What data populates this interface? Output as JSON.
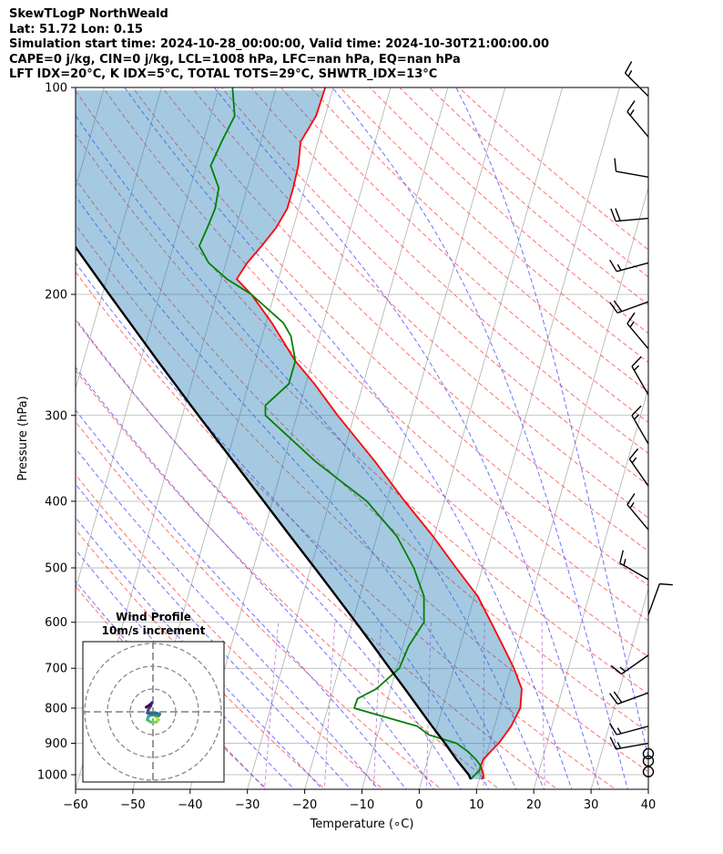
{
  "header": {
    "title": "SkewTLogP NorthWeald",
    "location": "Lat: 51.72   Lon: 0.15",
    "times": "Simulation start time: 2024-10-28_00:00:00, Valid time: 2024-10-30T21:00:00.00",
    "indices1": "CAPE=0 j/kg, CIN=0 j/kg, LCL=1008 hPa, LFC=nan hPa, EQ=nan hPa",
    "indices2": "LFT IDX=20°C, K IDX=5°C, TOTAL TOTS=29°C, SHWTR_IDX=13°C"
  },
  "chart_data": {
    "type": "skewt",
    "xlabel": "Temperature (∘C)",
    "ylabel": "Pressure (hPa)",
    "xlim": [
      -60,
      40
    ],
    "ylim": [
      1050,
      100
    ],
    "x_ticks": [
      -60,
      -50,
      -40,
      -30,
      -20,
      -10,
      0,
      10,
      20,
      30,
      40
    ],
    "x_tick_labels": [
      "−60",
      "−50",
      "−40",
      "−30",
      "−20",
      "−10",
      "0",
      "10",
      "20",
      "30",
      "40"
    ],
    "y_ticks": [
      100,
      200,
      300,
      400,
      500,
      600,
      700,
      800,
      900,
      1000
    ],
    "y_tick_labels": [
      "100",
      "200",
      "300",
      "400",
      "500",
      "600",
      "700",
      "800",
      "900",
      "1000"
    ],
    "skew": 35,
    "grid": true,
    "series": [
      {
        "role": "temperature",
        "color": "#ff0000",
        "points": [
          [
            1015,
            10.3
          ],
          [
            1010,
            10.6
          ],
          [
            1000,
            10.5
          ],
          [
            985,
            10
          ],
          [
            970,
            9.6
          ],
          [
            950,
            9.7
          ],
          [
            925,
            10.6
          ],
          [
            900,
            11.6
          ],
          [
            850,
            12.9
          ],
          [
            800,
            13.6
          ],
          [
            750,
            12.9
          ],
          [
            700,
            10.5
          ],
          [
            650,
            7.5
          ],
          [
            600,
            4.2
          ],
          [
            550,
            0.6
          ],
          [
            500,
            -4.6
          ],
          [
            450,
            -10.2
          ],
          [
            400,
            -16.9
          ],
          [
            350,
            -24.1
          ],
          [
            300,
            -32.9
          ],
          [
            270,
            -38.5
          ],
          [
            250,
            -43
          ],
          [
            220,
            -49
          ],
          [
            200,
            -54
          ],
          [
            190,
            -57.3
          ],
          [
            180,
            -56.3
          ],
          [
            170,
            -54.6
          ],
          [
            160,
            -53
          ],
          [
            150,
            -52
          ],
          [
            140,
            -52
          ],
          [
            130,
            -52.2
          ],
          [
            120,
            -53
          ],
          [
            110,
            -51.6
          ],
          [
            100,
            -51.4
          ]
        ]
      },
      {
        "role": "dewpoint",
        "color": "#008000",
        "points": [
          [
            1015,
            8.5
          ],
          [
            1000,
            9.0
          ],
          [
            985,
            9.6
          ],
          [
            970,
            9.5
          ],
          [
            950,
            8.4
          ],
          [
            925,
            6.6
          ],
          [
            900,
            4.2
          ],
          [
            875,
            -1
          ],
          [
            850,
            -3.5
          ],
          [
            800,
            -15.4
          ],
          [
            775,
            -15.3
          ],
          [
            750,
            -12.5
          ],
          [
            700,
            -9.5
          ],
          [
            650,
            -9
          ],
          [
            600,
            -7.5
          ],
          [
            550,
            -8.8
          ],
          [
            500,
            -12
          ],
          [
            450,
            -16.5
          ],
          [
            400,
            -23.5
          ],
          [
            350,
            -34.5
          ],
          [
            300,
            -45.5
          ],
          [
            290,
            -46
          ],
          [
            270,
            -43
          ],
          [
            250,
            -43
          ],
          [
            230,
            -45
          ],
          [
            220,
            -47
          ],
          [
            200,
            -54
          ],
          [
            190,
            -59
          ],
          [
            180,
            -63
          ],
          [
            170,
            -65.5
          ],
          [
            160,
            -65
          ],
          [
            150,
            -64.6
          ],
          [
            140,
            -65
          ],
          [
            130,
            -67.5
          ],
          [
            120,
            -66.8
          ],
          [
            110,
            -65.8
          ],
          [
            100,
            -67.6
          ]
        ]
      },
      {
        "role": "parcel",
        "color": "#000000",
        "points": [
          [
            1015,
            8.5
          ],
          [
            1000,
            7.9
          ],
          [
            950,
            5.0
          ],
          [
            900,
            2.2
          ],
          [
            850,
            -0.9
          ],
          [
            800,
            -4.1
          ],
          [
            750,
            -7.5
          ],
          [
            700,
            -11.2
          ],
          [
            650,
            -15.1
          ],
          [
            600,
            -19.4
          ],
          [
            550,
            -24.1
          ],
          [
            500,
            -29.3
          ],
          [
            450,
            -35.1
          ],
          [
            400,
            -41.5
          ],
          [
            350,
            -48.8
          ],
          [
            300,
            -57.2
          ],
          [
            250,
            -67
          ],
          [
            200,
            -78.8
          ],
          [
            150,
            -93.8
          ],
          [
            100,
            -114.8
          ]
        ]
      }
    ],
    "wind_barbs": [
      {
        "p": 990,
        "speed_kt": 0,
        "calm": true
      },
      {
        "p": 955,
        "speed_kt": 0,
        "calm": true
      },
      {
        "p": 932,
        "speed_kt": 0,
        "calm": true
      },
      {
        "p": 900,
        "speed_kt": 15,
        "dir": 260
      },
      {
        "p": 850,
        "speed_kt": 15,
        "dir": 255
      },
      {
        "p": 760,
        "speed_kt": 20,
        "dir": 250
      },
      {
        "p": 670,
        "speed_kt": 15,
        "dir": 235
      },
      {
        "p": 585,
        "speed_kt": 10,
        "dir": 20
      },
      {
        "p": 520,
        "speed_kt": 15,
        "dir": 300
      },
      {
        "p": 440,
        "speed_kt": 15,
        "dir": 320
      },
      {
        "p": 380,
        "speed_kt": 15,
        "dir": 325
      },
      {
        "p": 330,
        "speed_kt": 15,
        "dir": 330
      },
      {
        "p": 280,
        "speed_kt": 15,
        "dir": 330
      },
      {
        "p": 240,
        "speed_kt": 15,
        "dir": 320
      },
      {
        "p": 205,
        "speed_kt": 20,
        "dir": 250
      },
      {
        "p": 180,
        "speed_kt": 15,
        "dir": 255
      },
      {
        "p": 155,
        "speed_kt": 20,
        "dir": 265
      },
      {
        "p": 135,
        "speed_kt": 10,
        "dir": 280
      },
      {
        "p": 118,
        "speed_kt": 15,
        "dir": 320
      },
      {
        "p": 103,
        "speed_kt": 15,
        "dir": 315
      }
    ],
    "hodograph": {
      "title": "Wind Profile",
      "subtitle": "10m/s increment",
      "ring_step_ms": 10,
      "points": [
        [
          0.5,
          -1
        ],
        [
          1.5,
          -2.5
        ],
        [
          2.5,
          -3.5
        ],
        [
          1.5,
          -4.5
        ],
        [
          -1,
          -4.5
        ],
        [
          -2.5,
          -3.5
        ],
        [
          -2,
          -2
        ],
        [
          -1,
          -1.5
        ],
        [
          1,
          -1.5
        ],
        [
          2.5,
          -1.8
        ],
        [
          3,
          -1
        ],
        [
          1.5,
          -0.5
        ],
        [
          -1,
          -0.8
        ],
        [
          -2.5,
          -0.5
        ],
        [
          -2,
          1
        ],
        [
          -1,
          2.5
        ],
        [
          -0.5,
          4
        ],
        [
          -1.5,
          3
        ],
        [
          -3,
          2
        ]
      ]
    }
  }
}
